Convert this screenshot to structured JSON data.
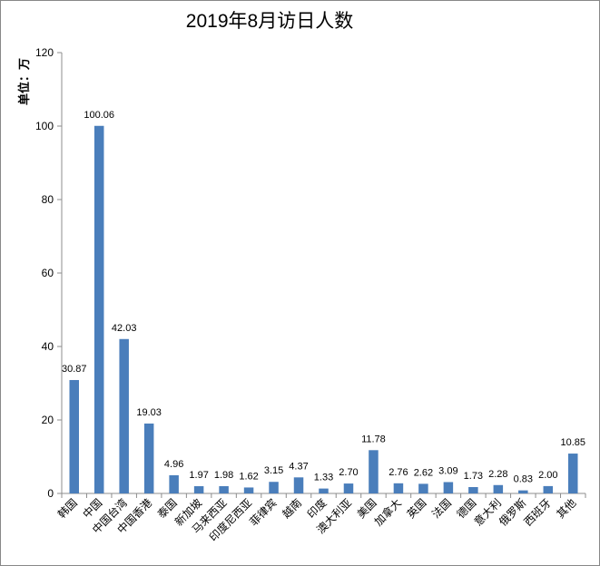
{
  "chart_data": {
    "type": "bar",
    "title": "2019年8月访日人数",
    "ylabel": "单位：万",
    "xlabel": "",
    "ylim": [
      0,
      120
    ],
    "yticks": [
      0,
      20,
      40,
      60,
      80,
      100,
      120
    ],
    "grid": false,
    "legend": "none",
    "bar_color": "#4a7ebb",
    "categories": [
      "韩国",
      "中国",
      "中国台湾",
      "中国香港",
      "泰国",
      "新加坡",
      "马来西亚",
      "印度尼西亚",
      "菲律宾",
      "越南",
      "印度",
      "澳大利亚",
      "美国",
      "加拿大",
      "英国",
      "法国",
      "德国",
      "意大利",
      "俄罗斯",
      "西班牙",
      "其他"
    ],
    "values": [
      30.87,
      100.06,
      42.03,
      19.03,
      4.96,
      1.97,
      1.98,
      1.62,
      3.15,
      4.37,
      1.33,
      2.7,
      11.78,
      2.76,
      2.62,
      3.09,
      1.73,
      2.28,
      0.83,
      2.0,
      10.85
    ],
    "data_labels": [
      "30.87",
      "100.06",
      "42.03",
      "19.03",
      "4.96",
      "1.97",
      "1.98",
      "1.62",
      "3.15",
      "4.37",
      "1.33",
      "2.70",
      "11.78",
      "2.76",
      "2.62",
      "3.09",
      "1.73",
      "2.28",
      "0.83",
      "2.00",
      "10.85"
    ]
  }
}
